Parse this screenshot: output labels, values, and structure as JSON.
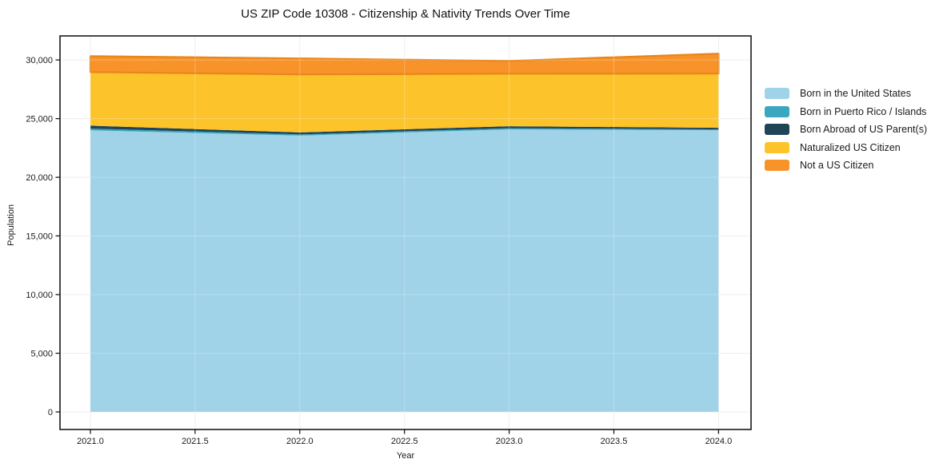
{
  "chart_data": {
    "type": "area",
    "stacked": true,
    "title": "US ZIP Code 10308 - Citizenship & Nativity Trends Over Time",
    "xlabel": "Year",
    "ylabel": "Population",
    "x": [
      2021,
      2022,
      2023,
      2024
    ],
    "series": [
      {
        "name": "Born in the United States",
        "color": "#A0D2E8",
        "values": [
          24000,
          23550,
          24080,
          24010
        ]
      },
      {
        "name": "Born in Puerto Rico / Islands",
        "color": "#3AA7C1",
        "values": [
          150,
          100,
          100,
          80
        ]
      },
      {
        "name": "Born Abroad of US Parent(s)",
        "color": "#1E4456",
        "values": [
          250,
          170,
          170,
          130
        ]
      },
      {
        "name": "Naturalized US Citizen",
        "color": "#FCC32B",
        "values": [
          4570,
          4950,
          4480,
          4620
        ]
      },
      {
        "name": "Not a US Citizen",
        "color": "#F79329",
        "edge": "#E8861B",
        "values": [
          1360,
          1360,
          1090,
          1700
        ]
      }
    ],
    "xlim": [
      2020.855,
      2024.155
    ],
    "ylim": [
      -1500,
      32050
    ],
    "xticks": {
      "values": [
        2021,
        2021.5,
        2022,
        2022.5,
        2023,
        2023.5,
        2024
      ],
      "labels": [
        "2021.0",
        "2021.5",
        "2022.0",
        "2022.5",
        "2023.0",
        "2023.5",
        "2024.0"
      ]
    },
    "yticks": {
      "values": [
        0,
        5000,
        10000,
        15000,
        20000,
        25000,
        30000
      ],
      "labels": [
        "0",
        "5,000",
        "10,000",
        "15,000",
        "20,000",
        "25,000",
        "30,000"
      ]
    },
    "grid": true,
    "legend_position": "right",
    "background": "#ffffff"
  },
  "colors": {
    "spine": "#1a1a1a",
    "grid": "#e9e9e9",
    "grid_overlay": "rgba(255,255,255,0.28)",
    "text": "#1a1a1a"
  }
}
